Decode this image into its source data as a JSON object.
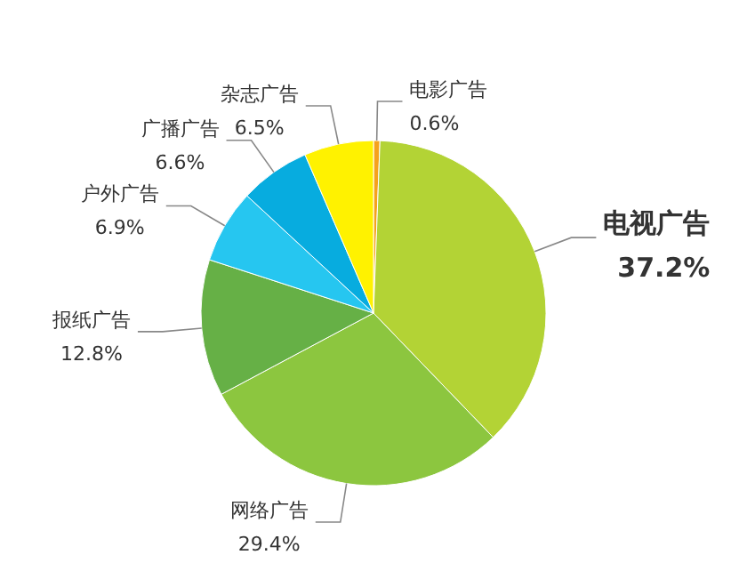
{
  "chart_data": {
    "type": "pie",
    "categories": [
      "电影广告",
      "电视广告",
      "网络广告",
      "报纸广告",
      "户外广告",
      "广播广告",
      "杂志广告"
    ],
    "values": [
      0.6,
      37.2,
      29.4,
      12.8,
      6.9,
      6.6,
      6.5
    ],
    "value_labels": [
      "0.6%",
      "37.2%",
      "29.4%",
      "12.8%",
      "6.9%",
      "6.6%",
      "6.5%"
    ],
    "colors": [
      "#f5a21c",
      "#b3d335",
      "#8cc63f",
      "#66b046",
      "#26c6f0",
      "#07acdf",
      "#fff200"
    ]
  }
}
